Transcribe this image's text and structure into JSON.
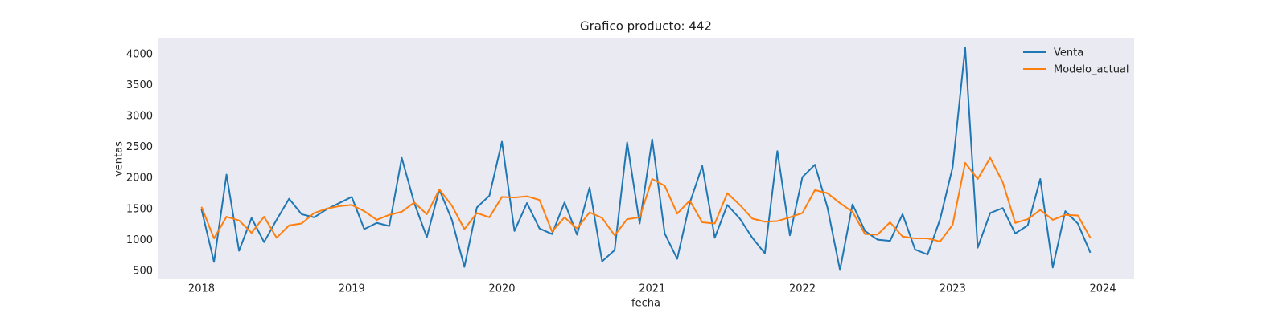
{
  "chart_data": {
    "type": "line",
    "title": "Grafico producto: 442",
    "x_label": "fecha",
    "y_label": "ventas",
    "x": [
      0,
      1,
      2,
      3,
      4,
      5,
      6,
      7,
      8,
      9,
      10,
      11,
      12,
      13,
      14,
      15,
      16,
      17,
      18,
      19,
      20,
      21,
      22,
      23,
      24,
      25,
      26,
      27,
      28,
      29,
      30,
      31,
      32,
      33,
      34,
      35,
      36,
      37,
      38,
      39,
      40,
      41,
      42,
      43,
      44,
      45,
      46,
      47,
      48,
      49,
      50,
      51,
      52,
      53,
      54,
      55,
      56,
      57,
      58,
      59,
      60,
      61,
      62,
      63,
      64,
      65,
      66,
      67,
      68,
      69,
      70,
      71
    ],
    "series": [
      {
        "name": "Venta",
        "color": "#1f77b4",
        "values": [
          1500,
          650,
          2060,
          830,
          1360,
          970,
          1330,
          1670,
          1420,
          1370,
          1500,
          1600,
          1700,
          1180,
          1280,
          1230,
          2330,
          1600,
          1050,
          1820,
          1330,
          570,
          1530,
          1720,
          2590,
          1150,
          1600,
          1190,
          1100,
          1610,
          1090,
          1850,
          660,
          840,
          2580,
          1270,
          2630,
          1110,
          700,
          1600,
          2200,
          1040,
          1570,
          1350,
          1040,
          790,
          2440,
          1080,
          2020,
          2220,
          1530,
          520,
          1580,
          1150,
          1010,
          990,
          1420,
          850,
          770,
          1340,
          2180,
          4110,
          880,
          1440,
          1520,
          1110,
          1240,
          1990,
          560,
          1470,
          1270,
          800
        ]
      },
      {
        "name": "Modelo_actual",
        "color": "#ff7f0e",
        "values": [
          1540,
          1030,
          1380,
          1320,
          1120,
          1380,
          1040,
          1240,
          1270,
          1440,
          1510,
          1550,
          1570,
          1470,
          1330,
          1410,
          1460,
          1610,
          1420,
          1820,
          1560,
          1180,
          1440,
          1370,
          1700,
          1690,
          1710,
          1650,
          1140,
          1370,
          1190,
          1450,
          1360,
          1080,
          1340,
          1370,
          1990,
          1880,
          1430,
          1640,
          1290,
          1270,
          1760,
          1570,
          1350,
          1300,
          1310,
          1370,
          1440,
          1810,
          1760,
          1600,
          1460,
          1100,
          1090,
          1290,
          1060,
          1030,
          1030,
          980,
          1250,
          2250,
          1990,
          2330,
          1940,
          1280,
          1340,
          1490,
          1330,
          1410,
          1400,
          1040
        ]
      }
    ],
    "xlim": [
      -3.5,
      74.5
    ],
    "xticks": [
      {
        "value": 0,
        "label": "2018"
      },
      {
        "value": 12,
        "label": "2019"
      },
      {
        "value": 24,
        "label": "2020"
      },
      {
        "value": 36,
        "label": "2021"
      },
      {
        "value": 48,
        "label": "2022"
      },
      {
        "value": 60,
        "label": "2023"
      },
      {
        "value": 72,
        "label": "2024"
      }
    ],
    "ylim": [
      370,
      4270
    ],
    "yticks": [
      500,
      1000,
      1500,
      2000,
      2500,
      3000,
      3500,
      4000
    ],
    "grid": false,
    "legend": "upper right"
  }
}
